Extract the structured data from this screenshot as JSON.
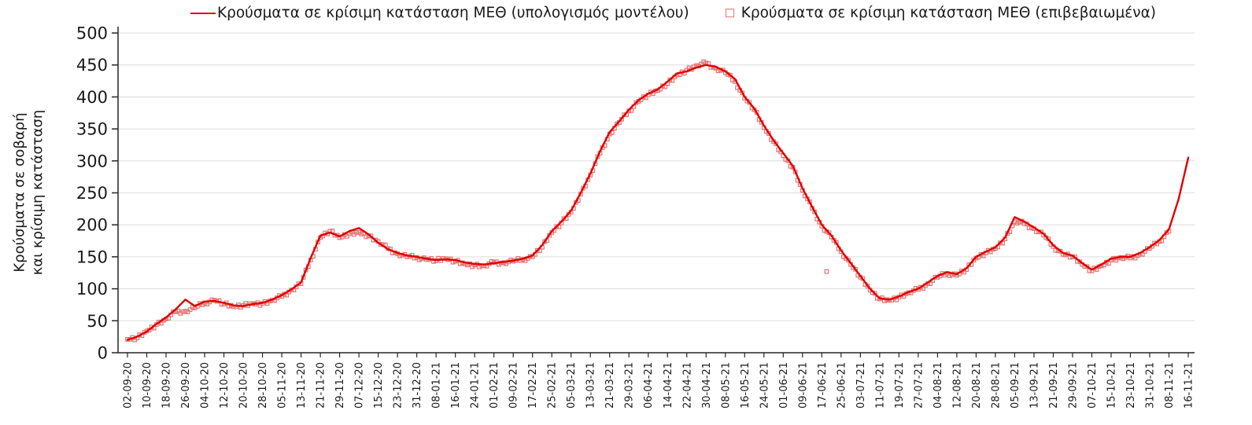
{
  "colors": {
    "background": "#ffffff",
    "grid": "#dcdcdc",
    "axis": "#262626",
    "tick_text": "#1a1a1a",
    "model_line": "#e00000",
    "confirmed_marker": "#e57373"
  },
  "chart_data": {
    "type": "line",
    "title": "",
    "ylabel_lines": [
      "Κρούσματα σε σοβαρή",
      "και κρίσιμη κατάσταση"
    ],
    "ylim": [
      0,
      500
    ],
    "y_ticks": [
      0,
      50,
      100,
      150,
      200,
      250,
      300,
      350,
      400,
      450,
      500
    ],
    "grid": "horizontal",
    "legend_position": "top-center",
    "x_tick_interval_days": 8,
    "x_resolution_days": 4,
    "x_tick_labels": [
      "02-09-20",
      "10-09-20",
      "18-09-20",
      "26-09-20",
      "04-10-20",
      "12-10-20",
      "20-10-20",
      "28-10-20",
      "05-11-20",
      "13-11-20",
      "21-11-20",
      "29-11-20",
      "07-12-20",
      "15-12-20",
      "23-12-20",
      "31-12-20",
      "08-01-21",
      "16-01-21",
      "24-01-21",
      "01-02-21",
      "09-02-21",
      "17-02-21",
      "25-02-21",
      "05-03-21",
      "13-03-21",
      "21-03-21",
      "29-03-21",
      "06-04-21",
      "14-04-21",
      "22-04-21",
      "30-04-21",
      "08-05-21",
      "16-05-21",
      "24-05-21",
      "01-06-21",
      "09-06-21",
      "17-06-21",
      "25-06-21",
      "03-07-21",
      "11-07-21",
      "19-07-21",
      "27-07-21",
      "04-08-21",
      "12-08-21",
      "20-08-21",
      "28-08-21",
      "05-09-21",
      "13-09-21",
      "21-09-21",
      "29-09-21",
      "07-10-21",
      "15-10-21",
      "23-10-21",
      "31-10-21",
      "08-11-21",
      "16-11-21"
    ],
    "series": [
      {
        "name": "model",
        "legend_label": "Κρούσματα σε κρίσιμη κατάσταση ΜΕΘ (υπολογισμός μοντέλου)",
        "type": "line",
        "color": "#e00000",
        "values": [
          20,
          25,
          33,
          45,
          55,
          68,
          83,
          73,
          80,
          81,
          78,
          74,
          73,
          76,
          78,
          83,
          90,
          99,
          110,
          148,
          183,
          188,
          182,
          190,
          195,
          185,
          172,
          162,
          156,
          152,
          150,
          147,
          145,
          146,
          145,
          141,
          139,
          138,
          140,
          142,
          144,
          147,
          152,
          168,
          190,
          205,
          222,
          250,
          280,
          315,
          345,
          362,
          380,
          395,
          405,
          412,
          424,
          437,
          440,
          446,
          450,
          447,
          440,
          428,
          400,
          382,
          355,
          332,
          312,
          292,
          257,
          228,
          200,
          183,
          160,
          140,
          120,
          100,
          85,
          83,
          88,
          95,
          100,
          110,
          120,
          126,
          123,
          132,
          150,
          158,
          165,
          180,
          212,
          205,
          196,
          186,
          168,
          156,
          152,
          140,
          130,
          138,
          147,
          150,
          150,
          156,
          165,
          176,
          193,
          240,
          305
        ]
      },
      {
        "name": "confirmed",
        "legend_label": "Κρούσματα σε κρίσιμη κατάσταση ΜΕΘ (επιβεβαιωμένα)",
        "type": "scatter-square",
        "color": "#e57373",
        "values": [
          21,
          23,
          34,
          44,
          53,
          64,
          65,
          70,
          78,
          82,
          76,
          72,
          74,
          77,
          77,
          82,
          88,
          98,
          108,
          145,
          180,
          190,
          180,
          186,
          188,
          183,
          174,
          163,
          155,
          150,
          149,
          146,
          144,
          147,
          143,
          139,
          137,
          136,
          141,
          141,
          143,
          146,
          150,
          165,
          188,
          203,
          220,
          248,
          278,
          312,
          342,
          360,
          378,
          393,
          403,
          410,
          421,
          434,
          442,
          449,
          453,
          445,
          438,
          424,
          398,
          380,
          352,
          330,
          308,
          290,
          254,
          226,
          198,
          181,
          158,
          138,
          118,
          98,
          84,
          82,
          87,
          94,
          99,
          108,
          118,
          124,
          121,
          130,
          148,
          156,
          163,
          178,
          205,
          202,
          194,
          184,
          166,
          154,
          150,
          138,
          128,
          136,
          145,
          149,
          148,
          154,
          163,
          174,
          190
        ],
        "outlier": {
          "day": 290,
          "value": 127
        }
      }
    ]
  }
}
